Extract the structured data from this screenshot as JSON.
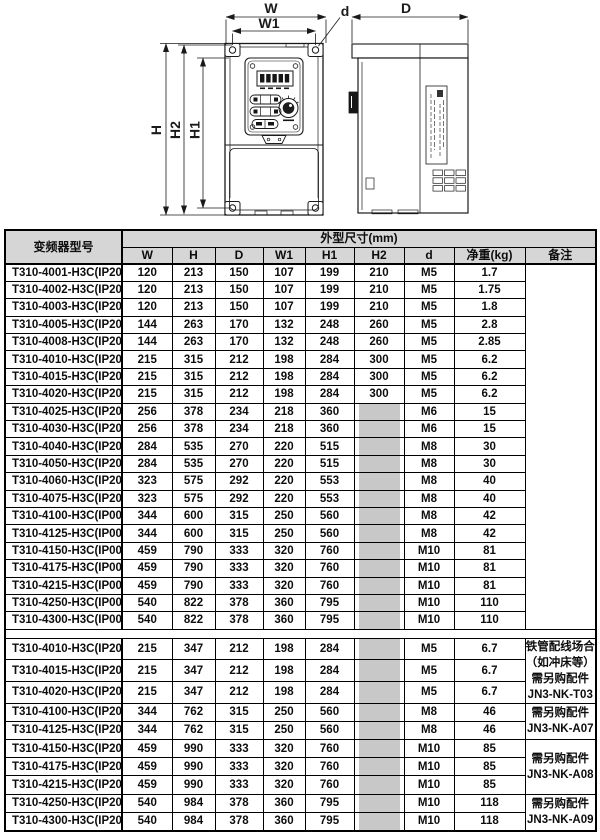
{
  "diagram": {
    "labels": {
      "W": "W",
      "W1": "W1",
      "d": "d",
      "H": "H",
      "H2": "H2",
      "H1": "H1",
      "D": "D"
    }
  },
  "table": {
    "header": {
      "model": "变频器型号",
      "group": "外型尺寸(mm)",
      "cols": [
        "W",
        "H",
        "D",
        "W1",
        "H1",
        "H2",
        "d",
        "净重(kg)",
        "备注"
      ]
    },
    "section1": [
      [
        "T310-4001-H3C(IP20)",
        "120",
        "213",
        "150",
        "107",
        "199",
        "210",
        "M5",
        "1.7"
      ],
      [
        "T310-4002-H3C(IP20)",
        "120",
        "213",
        "150",
        "107",
        "199",
        "210",
        "M5",
        "1.75"
      ],
      [
        "T310-4003-H3C(IP20)",
        "120",
        "213",
        "150",
        "107",
        "199",
        "210",
        "M5",
        "1.8"
      ],
      [
        "T310-4005-H3C(IP20)",
        "144",
        "263",
        "170",
        "132",
        "248",
        "260",
        "M5",
        "2.8"
      ],
      [
        "T310-4008-H3C(IP20)",
        "144",
        "263",
        "170",
        "132",
        "248",
        "260",
        "M5",
        "2.85"
      ],
      [
        "T310-4010-H3C(IP20)",
        "215",
        "315",
        "212",
        "198",
        "284",
        "300",
        "M5",
        "6.2"
      ],
      [
        "T310-4015-H3C(IP20)",
        "215",
        "315",
        "212",
        "198",
        "284",
        "300",
        "M5",
        "6.2"
      ],
      [
        "T310-4020-H3C(IP20)",
        "215",
        "315",
        "212",
        "198",
        "284",
        "300",
        "M5",
        "6.2"
      ],
      [
        "T310-4025-H3C(IP20)",
        "256",
        "378",
        "234",
        "218",
        "360",
        "",
        "M6",
        "15"
      ],
      [
        "T310-4030-H3C(IP20)",
        "256",
        "378",
        "234",
        "218",
        "360",
        "",
        "M6",
        "15"
      ],
      [
        "T310-4040-H3C(IP20)",
        "284",
        "535",
        "270",
        "220",
        "515",
        "",
        "M8",
        "30"
      ],
      [
        "T310-4050-H3C(IP20)",
        "284",
        "535",
        "270",
        "220",
        "515",
        "",
        "M8",
        "30"
      ],
      [
        "T310-4060-H3C(IP20)",
        "323",
        "575",
        "292",
        "220",
        "553",
        "",
        "M8",
        "40"
      ],
      [
        "T310-4075-H3C(IP20)",
        "323",
        "575",
        "292",
        "220",
        "553",
        "",
        "M8",
        "40"
      ],
      [
        "T310-4100-H3C(IP00)",
        "344",
        "600",
        "315",
        "250",
        "560",
        "",
        "M8",
        "42"
      ],
      [
        "T310-4125-H3C(IP00)",
        "344",
        "600",
        "315",
        "250",
        "560",
        "",
        "M8",
        "42"
      ],
      [
        "T310-4150-H3C(IP00)",
        "459",
        "790",
        "333",
        "320",
        "760",
        "",
        "M10",
        "81"
      ],
      [
        "T310-4175-H3C(IP00)",
        "459",
        "790",
        "333",
        "320",
        "760",
        "",
        "M10",
        "81"
      ],
      [
        "T310-4215-H3C(IP00)",
        "459",
        "790",
        "333",
        "320",
        "760",
        "",
        "M10",
        "81"
      ],
      [
        "T310-4250-H3C(IP00)",
        "540",
        "822",
        "378",
        "360",
        "795",
        "",
        "M10",
        "110"
      ],
      [
        "T310-4300-H3C(IP00)",
        "540",
        "822",
        "378",
        "360",
        "795",
        "",
        "M10",
        "110"
      ]
    ],
    "section2": [
      [
        "T310-4010-H3C(IP20)",
        "215",
        "347",
        "212",
        "198",
        "284",
        "",
        "M5",
        "6.7"
      ],
      [
        "T310-4015-H3C(IP20)",
        "215",
        "347",
        "212",
        "198",
        "284",
        "",
        "M5",
        "6.7"
      ],
      [
        "T310-4020-H3C(IP20)",
        "215",
        "347",
        "212",
        "198",
        "284",
        "",
        "M5",
        "6.7"
      ],
      [
        "T310-4100-H3C(IP20)",
        "344",
        "762",
        "315",
        "250",
        "560",
        "",
        "M8",
        "46"
      ],
      [
        "T310-4125-H3C(IP20)",
        "344",
        "762",
        "315",
        "250",
        "560",
        "",
        "M8",
        "46"
      ],
      [
        "T310-4150-H3C(IP20)",
        "459",
        "990",
        "333",
        "320",
        "760",
        "",
        "M10",
        "85"
      ],
      [
        "T310-4175-H3C(IP20)",
        "459",
        "990",
        "333",
        "320",
        "760",
        "",
        "M10",
        "85"
      ],
      [
        "T310-4215-H3C(IP20)",
        "459",
        "990",
        "333",
        "320",
        "760",
        "",
        "M10",
        "85"
      ],
      [
        "T310-4250-H3C(IP20)",
        "540",
        "984",
        "378",
        "360",
        "795",
        "",
        "M10",
        "118"
      ],
      [
        "T310-4300-H3C(IP20)",
        "540",
        "984",
        "378",
        "360",
        "795",
        "",
        "M10",
        "118"
      ]
    ],
    "remark_groups": [
      {
        "rows": 3,
        "lines": [
          "铁管配线场合",
          "（如冲床等）",
          "需另购配件",
          "JN3-NK-T03"
        ]
      },
      {
        "rows": 2,
        "lines": [
          "需另购配件",
          "JN3-NK-A07"
        ]
      },
      {
        "rows": 3,
        "lines": [
          "需另购配件",
          "JN3-NK-A08"
        ]
      },
      {
        "rows": 2,
        "lines": [
          "需另购配件",
          "JN3-NK-A09"
        ]
      }
    ],
    "colors": {
      "header_bg": "#d6d6d6",
      "blank_cell": "#c8c8c8"
    }
  }
}
